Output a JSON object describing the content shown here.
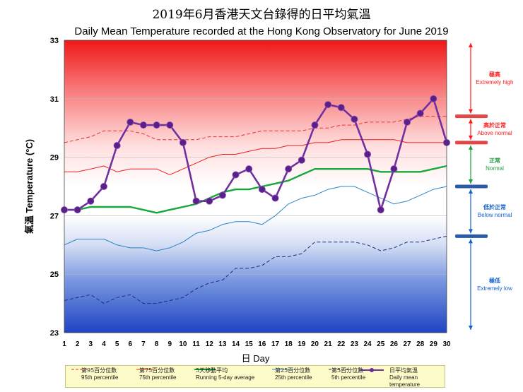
{
  "title_cn": "2019年6月香港天文台錄得的日平均氣溫",
  "title_en": "Daily Mean Temperature recorded at the Hong Kong Observatory for June 2019",
  "colors": {
    "daily": "#7030a0",
    "p95": "#e8322a",
    "p75": "#ec2020",
    "running5": "#18a83a",
    "p25": "#2f84c4",
    "p5": "#1e2a7e",
    "zone_red": "#ff1a1a",
    "zone_green": "#1a9e3a",
    "zone_blue": "#1060d0"
  },
  "zones": [
    {
      "cn": "極高",
      "en": "Extremely high",
      "color": "#ff1a1a"
    },
    {
      "cn": "高於正常",
      "en": "Above normal",
      "color": "#ff1a1a"
    },
    {
      "cn": "正常",
      "en": "Normal",
      "color": "#1a9e3a"
    },
    {
      "cn": "低於正常",
      "en": "Below normal",
      "color": "#1060d0"
    },
    {
      "cn": "極低",
      "en": "Extremely low",
      "color": "#1060d0"
    }
  ],
  "legend": [
    {
      "cn": "第95百分位數",
      "en": "95th percentile"
    },
    {
      "cn": "第75百分位數",
      "en": "75th percentile"
    },
    {
      "cn": "5天移動平均",
      "en": "Running 5-day average"
    },
    {
      "cn": "第25百分位數",
      "en": "25th percentile"
    },
    {
      "cn": "第5百分位數",
      "en": "5th percentile"
    },
    {
      "cn": "日平均氣溫",
      "en": "Daily mean temperature"
    }
  ],
  "chart_data": {
    "type": "line",
    "xlabel": "日 Day",
    "ylabel": "氣溫  Temperature (°C)",
    "ylim": [
      23,
      33
    ],
    "yticks": [
      23,
      25,
      27,
      29,
      31,
      33
    ],
    "x": [
      1,
      2,
      3,
      4,
      5,
      6,
      7,
      8,
      9,
      10,
      11,
      12,
      13,
      14,
      15,
      16,
      17,
      18,
      19,
      20,
      21,
      22,
      23,
      24,
      25,
      26,
      27,
      28,
      29,
      30
    ],
    "series": [
      {
        "name": "日平均氣溫 Daily mean temperature",
        "style": "line-marker",
        "values": [
          27.2,
          27.2,
          27.5,
          28.0,
          29.4,
          30.2,
          30.1,
          30.1,
          30.1,
          29.5,
          27.5,
          27.5,
          27.7,
          28.4,
          28.6,
          27.9,
          27.6,
          28.6,
          28.9,
          30.1,
          30.8,
          30.7,
          30.3,
          29.1,
          27.2,
          28.6,
          30.2,
          30.5,
          31.0,
          29.5
        ]
      },
      {
        "name": "第95百分位數 95th percentile",
        "style": "dashed",
        "values": [
          29.5,
          29.6,
          29.7,
          29.9,
          29.9,
          29.9,
          29.8,
          29.6,
          29.6,
          29.6,
          29.6,
          29.7,
          29.7,
          29.7,
          29.8,
          29.9,
          29.9,
          29.9,
          29.9,
          30.0,
          30.0,
          30.1,
          30.1,
          30.2,
          30.2,
          30.2,
          30.3,
          30.4,
          30.4,
          30.4
        ]
      },
      {
        "name": "第75百分位數 75th percentile",
        "style": "solid-thin",
        "values": [
          28.5,
          28.5,
          28.6,
          28.7,
          28.5,
          28.6,
          28.6,
          28.6,
          28.4,
          28.6,
          28.8,
          29.0,
          29.1,
          29.1,
          29.2,
          29.3,
          29.3,
          29.4,
          29.4,
          29.5,
          29.5,
          29.6,
          29.6,
          29.6,
          29.6,
          29.6,
          29.5,
          29.5,
          29.5,
          29.5
        ]
      },
      {
        "name": "5天移動平均 Running 5-day average",
        "style": "solid-thick",
        "values": [
          27.2,
          27.2,
          27.3,
          27.3,
          27.3,
          27.3,
          27.2,
          27.1,
          27.2,
          27.3,
          27.4,
          27.6,
          27.8,
          27.9,
          27.9,
          28.0,
          28.1,
          28.2,
          28.4,
          28.6,
          28.6,
          28.6,
          28.6,
          28.6,
          28.5,
          28.5,
          28.5,
          28.5,
          28.6,
          28.7
        ]
      },
      {
        "name": "第25百分位數 25th percentile",
        "style": "solid-thin",
        "values": [
          26.0,
          26.2,
          26.2,
          26.2,
          26.0,
          25.9,
          25.9,
          25.8,
          25.9,
          26.1,
          26.4,
          26.5,
          26.7,
          26.8,
          26.8,
          26.7,
          27.0,
          27.4,
          27.6,
          27.7,
          27.9,
          28.0,
          28.0,
          27.8,
          27.6,
          27.4,
          27.5,
          27.7,
          27.9,
          28.0
        ]
      },
      {
        "name": "第5百分位數 5th percentile",
        "style": "dashed",
        "values": [
          24.1,
          24.2,
          24.3,
          24.0,
          24.2,
          24.3,
          24.0,
          24.0,
          24.1,
          24.2,
          24.5,
          24.7,
          24.8,
          25.2,
          25.2,
          25.3,
          25.6,
          25.6,
          25.7,
          26.1,
          26.1,
          26.1,
          26.1,
          26.0,
          25.8,
          25.9,
          26.1,
          26.1,
          26.2,
          26.3
        ]
      }
    ]
  }
}
